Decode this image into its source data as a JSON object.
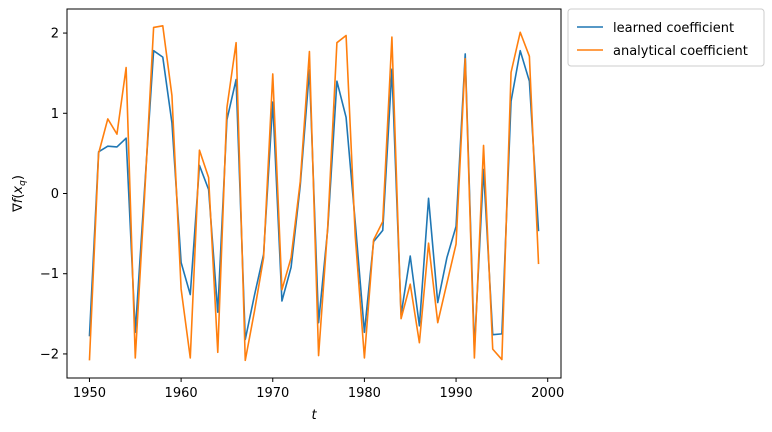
{
  "chart_data": {
    "type": "line",
    "title": "",
    "xlabel": "t",
    "ylabel": "∇f(x_q)",
    "xlim": [
      1947.55,
      2001.45
    ],
    "ylim": [
      -2.3,
      2.3
    ],
    "xticks": [
      1950,
      1960,
      1970,
      1980,
      1990,
      2000
    ],
    "yticks": [
      -2,
      -1,
      0,
      1,
      2
    ],
    "grid": false,
    "legend_position": "outside-top-right",
    "x": [
      1950,
      1951,
      1952,
      1953,
      1954,
      1955,
      1956,
      1957,
      1958,
      1959,
      1960,
      1961,
      1962,
      1963,
      1964,
      1965,
      1966,
      1967,
      1968,
      1969,
      1970,
      1971,
      1972,
      1973,
      1974,
      1975,
      1976,
      1977,
      1978,
      1979,
      1980,
      1981,
      1982,
      1983,
      1984,
      1985,
      1986,
      1987,
      1988,
      1989,
      1990,
      1991,
      1992,
      1993,
      1994,
      1995,
      1996,
      1997,
      1998,
      1999
    ],
    "series": [
      {
        "name": "learned coefficient",
        "color": "#1f77b4",
        "values": [
          -1.78,
          0.52,
          0.59,
          0.58,
          0.69,
          -1.73,
          0.03,
          1.78,
          1.7,
          0.88,
          -0.86,
          -1.26,
          0.35,
          0.05,
          -1.48,
          0.92,
          1.42,
          -1.82,
          -1.27,
          -0.76,
          1.14,
          -1.34,
          -0.92,
          0.1,
          1.54,
          -1.61,
          -0.44,
          1.4,
          0.95,
          -0.36,
          -1.73,
          -0.6,
          -0.46,
          1.55,
          -1.51,
          -0.78,
          -1.65,
          -0.06,
          -1.36,
          -0.8,
          -0.41,
          1.74,
          -1.94,
          0.3,
          -1.76,
          -1.75,
          1.15,
          1.78,
          1.4,
          -0.47
        ]
      },
      {
        "name": "analytical coefficient",
        "color": "#ff7f0e",
        "values": [
          -2.08,
          0.5,
          0.93,
          0.74,
          1.57,
          -2.05,
          -0.06,
          2.07,
          2.09,
          1.22,
          -1.19,
          -2.05,
          0.54,
          0.2,
          -1.98,
          1.07,
          1.88,
          -2.08,
          -1.47,
          -0.8,
          1.49,
          -1.2,
          -0.8,
          0.15,
          1.77,
          -2.02,
          -0.41,
          1.88,
          1.97,
          -0.53,
          -2.05,
          -0.58,
          -0.35,
          1.95,
          -1.56,
          -1.13,
          -1.86,
          -0.62,
          -1.61,
          -1.12,
          -0.63,
          1.68,
          -2.05,
          0.6,
          -1.94,
          -2.07,
          1.51,
          2.01,
          1.71,
          -0.88
        ]
      }
    ]
  }
}
